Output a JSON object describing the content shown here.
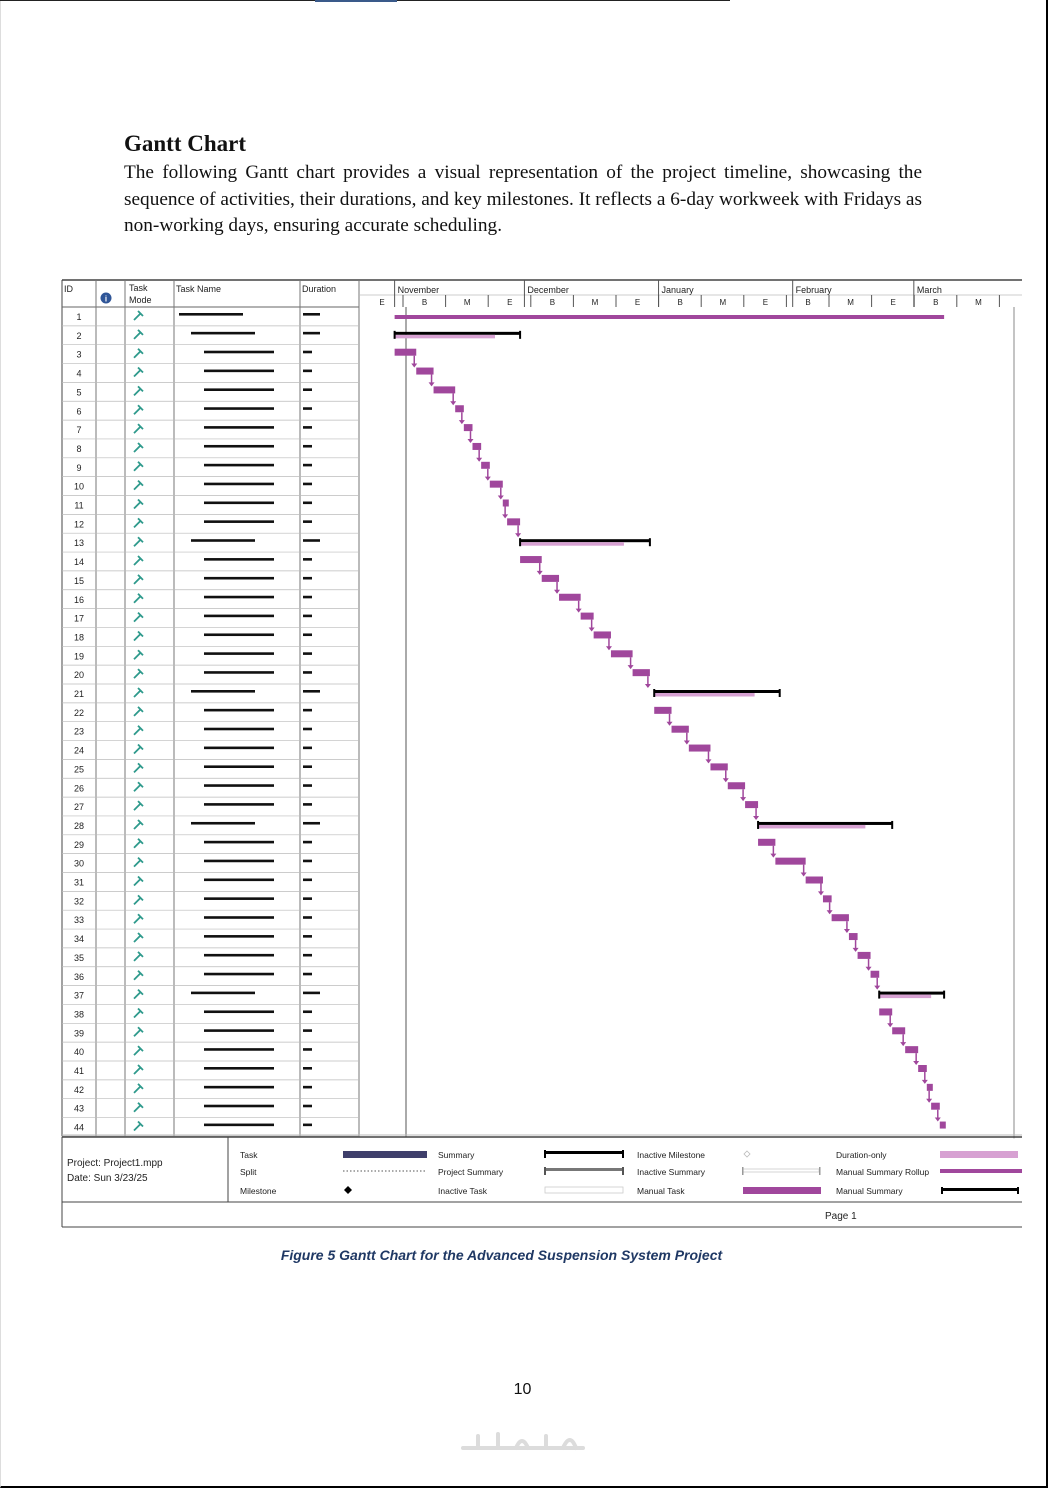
{
  "heading": "Gantt Chart",
  "intro": "The following Gantt chart provides a visual representation of the project timeline, showcasing the sequence of activities, their durations, and key milestones. It reflects a 6-day workweek with Fridays as non-working days, ensuring accurate scheduling.",
  "chart_data": {
    "type": "gantt",
    "columns": [
      "ID",
      "Task Mode",
      "Task Name",
      "Duration"
    ],
    "months": [
      "November",
      "December",
      "January",
      "February",
      "March"
    ],
    "tick_labels": [
      "E",
      "B",
      "M",
      "E",
      "B",
      "M",
      "E",
      "B",
      "M",
      "E",
      "B",
      "M",
      "E",
      "B",
      "M"
    ],
    "timeline_start_day": -8,
    "timeline_end_day": 145,
    "month_start_days": [
      0,
      30,
      61,
      92,
      120
    ],
    "tasks": [
      {
        "id": 1,
        "summary": true,
        "name_level": 0,
        "start": 0,
        "finish": 127
      },
      {
        "id": 2,
        "summary": true,
        "name_level": 1,
        "start": 0,
        "finish": 29
      },
      {
        "id": 3,
        "summary": false,
        "name_level": 2,
        "start": 0,
        "finish": 5
      },
      {
        "id": 4,
        "summary": false,
        "name_level": 2,
        "start": 5,
        "finish": 9
      },
      {
        "id": 5,
        "summary": false,
        "name_level": 2,
        "start": 9,
        "finish": 14
      },
      {
        "id": 6,
        "summary": false,
        "name_level": 2,
        "start": 14,
        "finish": 16
      },
      {
        "id": 7,
        "summary": false,
        "name_level": 2,
        "start": 16,
        "finish": 18
      },
      {
        "id": 8,
        "summary": false,
        "name_level": 2,
        "start": 18,
        "finish": 20
      },
      {
        "id": 9,
        "summary": false,
        "name_level": 2,
        "start": 20,
        "finish": 22
      },
      {
        "id": 10,
        "summary": false,
        "name_level": 2,
        "start": 22,
        "finish": 25
      },
      {
        "id": 11,
        "summary": false,
        "name_level": 2,
        "start": 25,
        "finish": 26
      },
      {
        "id": 12,
        "summary": false,
        "name_level": 2,
        "start": 26,
        "finish": 29
      },
      {
        "id": 13,
        "summary": true,
        "name_level": 1,
        "start": 29,
        "finish": 59
      },
      {
        "id": 14,
        "summary": false,
        "name_level": 2,
        "start": 29,
        "finish": 34
      },
      {
        "id": 15,
        "summary": false,
        "name_level": 2,
        "start": 34,
        "finish": 38
      },
      {
        "id": 16,
        "summary": false,
        "name_level": 2,
        "start": 38,
        "finish": 43
      },
      {
        "id": 17,
        "summary": false,
        "name_level": 2,
        "start": 43,
        "finish": 46
      },
      {
        "id": 18,
        "summary": false,
        "name_level": 2,
        "start": 46,
        "finish": 50
      },
      {
        "id": 19,
        "summary": false,
        "name_level": 2,
        "start": 50,
        "finish": 55
      },
      {
        "id": 20,
        "summary": false,
        "name_level": 2,
        "start": 55,
        "finish": 59
      },
      {
        "id": 21,
        "summary": true,
        "name_level": 1,
        "start": 60,
        "finish": 89
      },
      {
        "id": 22,
        "summary": false,
        "name_level": 2,
        "start": 60,
        "finish": 64
      },
      {
        "id": 23,
        "summary": false,
        "name_level": 2,
        "start": 64,
        "finish": 68
      },
      {
        "id": 24,
        "summary": false,
        "name_level": 2,
        "start": 68,
        "finish": 73
      },
      {
        "id": 25,
        "summary": false,
        "name_level": 2,
        "start": 73,
        "finish": 77
      },
      {
        "id": 26,
        "summary": false,
        "name_level": 2,
        "start": 77,
        "finish": 81
      },
      {
        "id": 27,
        "summary": false,
        "name_level": 2,
        "start": 81,
        "finish": 84
      },
      {
        "id": 28,
        "summary": true,
        "name_level": 1,
        "start": 84,
        "finish": 115
      },
      {
        "id": 29,
        "summary": false,
        "name_level": 2,
        "start": 84,
        "finish": 88
      },
      {
        "id": 30,
        "summary": false,
        "name_level": 2,
        "start": 88,
        "finish": 95
      },
      {
        "id": 31,
        "summary": false,
        "name_level": 2,
        "start": 95,
        "finish": 99
      },
      {
        "id": 32,
        "summary": false,
        "name_level": 2,
        "start": 99,
        "finish": 101
      },
      {
        "id": 33,
        "summary": false,
        "name_level": 2,
        "start": 101,
        "finish": 105
      },
      {
        "id": 34,
        "summary": false,
        "name_level": 2,
        "start": 105,
        "finish": 107
      },
      {
        "id": 35,
        "summary": false,
        "name_level": 2,
        "start": 107,
        "finish": 110
      },
      {
        "id": 36,
        "summary": false,
        "name_level": 2,
        "start": 110,
        "finish": 112
      },
      {
        "id": 37,
        "summary": true,
        "name_level": 1,
        "start": 112,
        "finish": 127
      },
      {
        "id": 38,
        "summary": false,
        "name_level": 2,
        "start": 112,
        "finish": 115
      },
      {
        "id": 39,
        "summary": false,
        "name_level": 2,
        "start": 115,
        "finish": 118
      },
      {
        "id": 40,
        "summary": false,
        "name_level": 2,
        "start": 118,
        "finish": 121
      },
      {
        "id": 41,
        "summary": false,
        "name_level": 2,
        "start": 121,
        "finish": 123
      },
      {
        "id": 42,
        "summary": false,
        "name_level": 2,
        "start": 123,
        "finish": 124
      },
      {
        "id": 43,
        "summary": false,
        "name_level": 2,
        "start": 124,
        "finish": 126
      },
      {
        "id": 44,
        "summary": false,
        "name_level": 2,
        "start": 126,
        "finish": 127
      }
    ],
    "legend": [
      {
        "label": "Task",
        "style": "task"
      },
      {
        "label": "Split",
        "style": "split"
      },
      {
        "label": "Milestone",
        "style": "milestone"
      },
      {
        "label": "Summary",
        "style": "summary"
      },
      {
        "label": "Project Summary",
        "style": "project-summary"
      },
      {
        "label": "Inactive Task",
        "style": "inactive-task"
      },
      {
        "label": "Inactive Milestone",
        "style": "inactive-milestone"
      },
      {
        "label": "Inactive Summary",
        "style": "inactive-summary"
      },
      {
        "label": "Manual Task",
        "style": "manual-task"
      },
      {
        "label": "Duration-only",
        "style": "duration-only"
      },
      {
        "label": "Manual Summary Rollup",
        "style": "manual-summary-rollup"
      },
      {
        "label": "Manual Summary",
        "style": "manual-summary"
      }
    ],
    "footer_project": "Project: Project1.mpp",
    "footer_date": "Date: Sun 3/23/25",
    "footer_page": "Page 1"
  },
  "caption": "Figure 5   Gantt Chart for the Advanced Suspension System Project",
  "page_number": "10",
  "watermark": "خمسات",
  "colors": {
    "task_bar": "#a0479c",
    "task_bar_light": "#d7a1d2",
    "summary_bar": "#000000",
    "grid_line": "#9a9a9a",
    "pin_icon": "#2e9a8c",
    "info_icon": "#2f5597",
    "task_legend": "#3f3f6b"
  }
}
